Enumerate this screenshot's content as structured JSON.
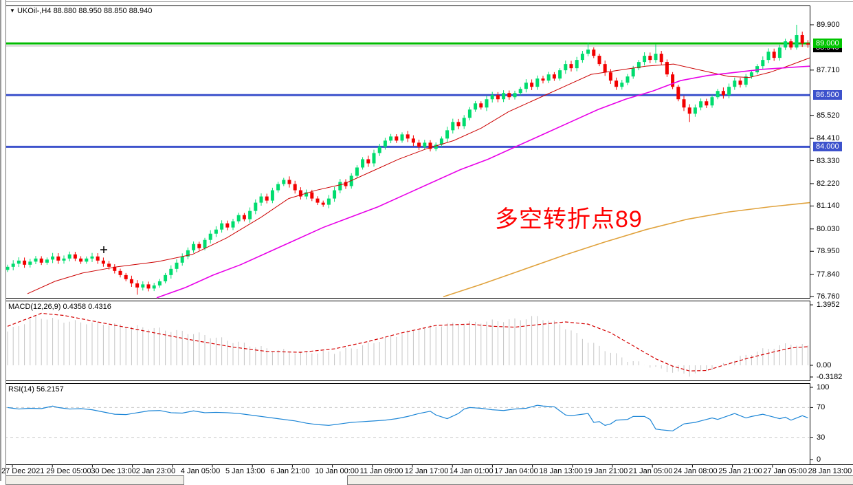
{
  "header": {
    "collapse_icon": "▼",
    "symbol": "UKOil-,H4",
    "quotes": "88.880 88.950 88.850 88.940"
  },
  "indicators": {
    "macd_label": "MACD(12,26,9) 0.4358 0.4316",
    "rsi_label": "RSI(14) 56.2157"
  },
  "annotation": {
    "text": "多空转折点89",
    "color": "#FF0000"
  },
  "price_axis": {
    "plain_ticks": [
      "89.900",
      "87.710",
      "85.520",
      "84.410",
      "83.330",
      "82.220",
      "81.140",
      "80.030",
      "78.950",
      "77.840",
      "76.760"
    ],
    "badges": [
      {
        "text": "88.940",
        "bg": "#000000"
      },
      {
        "text": "89.000",
        "bg": "#00C400"
      },
      {
        "text": "86.500",
        "bg": "#3D52CC"
      },
      {
        "text": "84.000",
        "bg": "#3D52CC"
      }
    ],
    "macd_ticks": [
      "1.3952",
      "0.00",
      "-0.3182"
    ],
    "rsi_ticks": [
      "100",
      "70",
      "30",
      "0"
    ]
  },
  "date_axis": {
    "labels": [
      "27 Dec 2021",
      "29 Dec 05:00",
      "30 Dec 13:00",
      "2 Jan 23:00",
      "4 Jan 05:00",
      "5 Jan 13:00",
      "6 Jan 21:00",
      "10 Jan 00:00",
      "11 Jan 09:00",
      "12 Jan 17:00",
      "14 Jan 01:00",
      "17 Jan 04:00",
      "18 Jan 13:00",
      "19 Jan 21:00",
      "21 Jan 05:00",
      "24 Jan 08:00",
      "25 Jan 21:00",
      "27 Jan 05:00",
      "28 Jan 13:00"
    ]
  },
  "colors": {
    "bull": "#00DC6E",
    "bear": "#F20000",
    "ma_red": "#CC0000",
    "ma_magenta": "#E800E8",
    "ma_orange": "#E0A23C",
    "hline_green": "#00BB00",
    "hline_blue": "#3D52CC",
    "bid_line": "#AAAAAA",
    "macd_hist": "#C4C4C4",
    "macd_signal": "#D40000",
    "rsi_line": "#1B85D6",
    "rsi_level": "#C8C8C8",
    "frame": "#000000"
  },
  "chart_data": [
    {
      "type": "candlestick",
      "title": "UKOil- H4 price",
      "ylim": [
        76.2,
        90.3
      ],
      "y_ticks": [
        89.9,
        89.0,
        88.94,
        87.71,
        86.5,
        85.52,
        84.41,
        84.0,
        83.33,
        82.22,
        81.14,
        80.03,
        78.95,
        77.84,
        76.76
      ],
      "x_labels": [
        "27 Dec 2021",
        "29 Dec 05:00",
        "30 Dec 13:00",
        "2 Jan 23:00",
        "4 Jan 05:00",
        "5 Jan 13:00",
        "6 Jan 21:00",
        "10 Jan 00:00",
        "11 Jan 09:00",
        "12 Jan 17:00",
        "14 Jan 01:00",
        "17 Jan 04:00",
        "18 Jan 13:00",
        "19 Jan 21:00",
        "21 Jan 05:00",
        "24 Jan 08:00",
        "25 Jan 21:00",
        "27 Jan 05:00",
        "28 Jan 13:00"
      ],
      "first_open": 78.05,
      "closes": [
        78.2,
        78.35,
        78.5,
        78.3,
        78.45,
        78.6,
        78.4,
        78.55,
        78.7,
        78.5,
        78.6,
        78.8,
        78.6,
        78.45,
        78.6,
        78.7,
        78.5,
        78.35,
        78.2,
        78.0,
        77.8,
        77.6,
        77.4,
        77.2,
        77.35,
        77.15,
        77.3,
        77.5,
        77.8,
        78.1,
        78.4,
        78.7,
        79.0,
        79.3,
        79.1,
        79.5,
        79.8,
        80.0,
        80.3,
        80.1,
        80.4,
        80.7,
        80.5,
        80.9,
        81.3,
        81.6,
        81.4,
        81.9,
        82.2,
        82.4,
        82.2,
        81.9,
        81.6,
        81.8,
        81.5,
        81.3,
        81.2,
        81.5,
        81.9,
        82.3,
        82.1,
        82.6,
        83.0,
        83.4,
        83.2,
        83.7,
        84.0,
        84.3,
        84.5,
        84.3,
        84.6,
        84.4,
        84.2,
        84.0,
        84.2,
        83.9,
        84.1,
        84.4,
        84.8,
        85.2,
        85.0,
        85.4,
        85.8,
        86.1,
        85.9,
        86.3,
        86.5,
        86.3,
        86.6,
        86.4,
        86.6,
        86.8,
        87.1,
        86.9,
        87.3,
        87.2,
        87.5,
        87.3,
        87.7,
        88.0,
        87.8,
        88.2,
        88.5,
        88.7,
        88.4,
        88.0,
        87.6,
        87.2,
        86.9,
        87.1,
        87.4,
        87.8,
        88.1,
        88.4,
        88.2,
        88.5,
        88.1,
        87.5,
        86.9,
        86.3,
        85.9,
        85.6,
        85.9,
        86.2,
        86.0,
        86.4,
        86.7,
        86.5,
        86.9,
        87.2,
        87.0,
        87.4,
        87.6,
        87.9,
        88.2,
        88.6,
        88.3,
        88.8,
        89.1,
        88.8,
        89.4,
        89.0,
        88.94
      ],
      "wick_overrides": {
        "23": {
          "low": 76.85
        },
        "103": {
          "high": 89.05
        },
        "115": {
          "high": 88.95
        },
        "121": {
          "low": 85.2
        },
        "140": {
          "high": 89.9
        }
      },
      "hlines": [
        {
          "price": 89.0,
          "color": "#00BB00",
          "width": 3
        },
        {
          "price": 86.5,
          "color": "#3D52CC",
          "width": 3
        },
        {
          "price": 84.0,
          "color": "#3D52CC",
          "width": 3
        }
      ],
      "bid_line_price": 88.94,
      "cross_marker": {
        "x": 151,
        "y": 363
      },
      "moving_averages": [
        {
          "name": "ma-red",
          "color": "#CC0000",
          "width": 1,
          "points": [
            [
              40,
              76.9
            ],
            [
              80,
              77.5
            ],
            [
              120,
              77.9
            ],
            [
              170,
              78.2
            ],
            [
              230,
              78.45
            ],
            [
              280,
              78.8
            ],
            [
              330,
              79.6
            ],
            [
              380,
              80.6
            ],
            [
              420,
              81.5
            ],
            [
              460,
              81.9
            ],
            [
              500,
              82.2
            ],
            [
              540,
              82.8
            ],
            [
              580,
              83.4
            ],
            [
              620,
              83.9
            ],
            [
              660,
              84.3
            ],
            [
              700,
              84.9
            ],
            [
              740,
              85.7
            ],
            [
              780,
              86.3
            ],
            [
              820,
              86.9
            ],
            [
              860,
              87.5
            ],
            [
              900,
              87.7
            ],
            [
              940,
              87.9
            ],
            [
              980,
              88.0
            ],
            [
              1020,
              87.7
            ],
            [
              1060,
              87.4
            ],
            [
              1090,
              87.35
            ],
            [
              1120,
              87.6
            ],
            [
              1150,
              87.95
            ],
            [
              1178,
              88.3
            ]
          ]
        },
        {
          "name": "ma-magenta",
          "color": "#E800E8",
          "width": 1.6,
          "points": [
            [
              228,
              76.7
            ],
            [
              270,
              77.2
            ],
            [
              310,
              77.8
            ],
            [
              350,
              78.3
            ],
            [
              390,
              78.9
            ],
            [
              430,
              79.5
            ],
            [
              470,
              80.1
            ],
            [
              510,
              80.6
            ],
            [
              550,
              81.1
            ],
            [
              590,
              81.7
            ],
            [
              630,
              82.3
            ],
            [
              670,
              82.9
            ],
            [
              710,
              83.4
            ],
            [
              750,
              84.0
            ],
            [
              790,
              84.6
            ],
            [
              830,
              85.2
            ],
            [
              870,
              85.8
            ],
            [
              910,
              86.3
            ],
            [
              950,
              86.7
            ],
            [
              990,
              87.2
            ],
            [
              1030,
              87.45
            ],
            [
              1070,
              87.6
            ],
            [
              1110,
              87.75
            ],
            [
              1178,
              87.9
            ]
          ]
        },
        {
          "name": "ma-orange",
          "color": "#E0A23C",
          "width": 1.6,
          "points": [
            [
              645,
              76.75
            ],
            [
              700,
              77.35
            ],
            [
              760,
              78.05
            ],
            [
              820,
              78.75
            ],
            [
              880,
              79.4
            ],
            [
              940,
              80.0
            ],
            [
              1000,
              80.5
            ],
            [
              1060,
              80.85
            ],
            [
              1120,
              81.1
            ],
            [
              1178,
              81.3
            ]
          ]
        }
      ]
    },
    {
      "type": "macd",
      "title": "MACD(12,26,9)",
      "current_values": [
        0.4358,
        0.4316
      ],
      "ylim": [
        -0.36,
        1.45
      ],
      "y_ticks": [
        1.3952,
        0.0,
        -0.3182
      ],
      "histogram_控points_note": "control points [index,value], linear interp per bar",
      "histogram_points": [
        [
          0,
          0.78
        ],
        [
          5,
          1.12
        ],
        [
          10,
          1.02
        ],
        [
          18,
          0.95
        ],
        [
          26,
          0.85
        ],
        [
          34,
          0.72
        ],
        [
          40,
          0.55
        ],
        [
          46,
          0.38
        ],
        [
          52,
          0.3
        ],
        [
          58,
          0.3
        ],
        [
          63,
          0.45
        ],
        [
          68,
          0.65
        ],
        [
          73,
          0.85
        ],
        [
          78,
          0.95
        ],
        [
          84,
          1.0
        ],
        [
          90,
          1.05
        ],
        [
          94,
          1.12
        ],
        [
          98,
          0.95
        ],
        [
          103,
          0.55
        ],
        [
          107,
          0.3
        ],
        [
          110,
          0.12
        ],
        [
          113,
          0.02
        ],
        [
          116,
          -0.1
        ],
        [
          119,
          -0.18
        ],
        [
          121,
          -0.22
        ],
        [
          124,
          -0.12
        ],
        [
          127,
          0.02
        ],
        [
          130,
          0.18
        ],
        [
          133,
          0.32
        ],
        [
          136,
          0.42
        ],
        [
          139,
          0.5
        ],
        [
          142,
          0.44
        ]
      ],
      "signal_points": [
        [
          0,
          0.9
        ],
        [
          3,
          1.05
        ],
        [
          6,
          1.2
        ],
        [
          10,
          1.15
        ],
        [
          16,
          1.0
        ],
        [
          24,
          0.8
        ],
        [
          32,
          0.6
        ],
        [
          40,
          0.42
        ],
        [
          46,
          0.32
        ],
        [
          52,
          0.3
        ],
        [
          58,
          0.38
        ],
        [
          64,
          0.55
        ],
        [
          70,
          0.75
        ],
        [
          76,
          0.92
        ],
        [
          82,
          0.95
        ],
        [
          86,
          0.9
        ],
        [
          90,
          0.88
        ],
        [
          95,
          0.95
        ],
        [
          99,
          1.0
        ],
        [
          103,
          0.95
        ],
        [
          107,
          0.75
        ],
        [
          111,
          0.45
        ],
        [
          115,
          0.15
        ],
        [
          118,
          -0.02
        ],
        [
          121,
          -0.13
        ],
        [
          124,
          -0.12
        ],
        [
          127,
          0.0
        ],
        [
          131,
          0.15
        ],
        [
          135,
          0.28
        ],
        [
          139,
          0.4
        ],
        [
          142,
          0.43
        ]
      ]
    },
    {
      "type": "rsi",
      "title": "RSI(14)",
      "current_value": 56.2157,
      "ylim": [
        0,
        100
      ],
      "y_ticks": [
        100,
        70,
        30,
        0
      ],
      "levels": [
        70,
        30
      ],
      "points": [
        [
          0,
          70
        ],
        [
          2,
          68
        ],
        [
          4,
          69
        ],
        [
          6,
          68.5
        ],
        [
          8,
          72
        ],
        [
          9,
          70
        ],
        [
          11,
          68
        ],
        [
          13,
          68.5
        ],
        [
          15,
          67
        ],
        [
          17,
          64
        ],
        [
          19,
          61
        ],
        [
          21,
          60.5
        ],
        [
          23,
          63
        ],
        [
          25,
          65.5
        ],
        [
          27,
          66
        ],
        [
          29,
          63
        ],
        [
          31,
          62.5
        ],
        [
          33,
          65.5
        ],
        [
          35,
          63
        ],
        [
          37,
          63.5
        ],
        [
          39,
          63
        ],
        [
          41,
          62
        ],
        [
          43,
          60
        ],
        [
          45,
          58
        ],
        [
          47,
          56
        ],
        [
          49,
          54
        ],
        [
          51,
          52
        ],
        [
          53,
          49
        ],
        [
          55,
          47
        ],
        [
          57,
          46
        ],
        [
          59,
          48
        ],
        [
          61,
          50
        ],
        [
          63,
          51
        ],
        [
          65,
          52
        ],
        [
          67,
          53
        ],
        [
          69,
          55
        ],
        [
          71,
          58
        ],
        [
          73,
          62
        ],
        [
          75,
          65
        ],
        [
          76,
          60
        ],
        [
          78,
          55
        ],
        [
          80,
          62
        ],
        [
          81,
          68
        ],
        [
          82,
          70
        ],
        [
          84,
          69
        ],
        [
          86,
          67
        ],
        [
          88,
          66
        ],
        [
          90,
          68
        ],
        [
          92,
          69
        ],
        [
          94,
          73
        ],
        [
          95,
          72
        ],
        [
          97,
          71
        ],
        [
          99,
          60
        ],
        [
          100,
          59
        ],
        [
          102,
          61
        ],
        [
          103,
          62
        ],
        [
          104,
          50
        ],
        [
          105,
          51
        ],
        [
          106,
          46
        ],
        [
          107,
          48
        ],
        [
          108,
          53
        ],
        [
          110,
          54
        ],
        [
          111,
          58
        ],
        [
          113,
          58
        ],
        [
          114,
          54
        ],
        [
          115,
          41
        ],
        [
          116,
          40
        ],
        [
          118,
          38.5
        ],
        [
          120,
          48
        ],
        [
          122,
          50
        ],
        [
          125,
          56
        ],
        [
          126,
          54
        ],
        [
          129,
          62
        ],
        [
          131,
          56
        ],
        [
          132,
          58
        ],
        [
          134,
          61
        ],
        [
          136,
          57
        ],
        [
          137,
          55
        ],
        [
          138,
          57
        ],
        [
          139,
          53
        ],
        [
          141,
          59
        ],
        [
          142,
          56.2
        ]
      ]
    }
  ]
}
